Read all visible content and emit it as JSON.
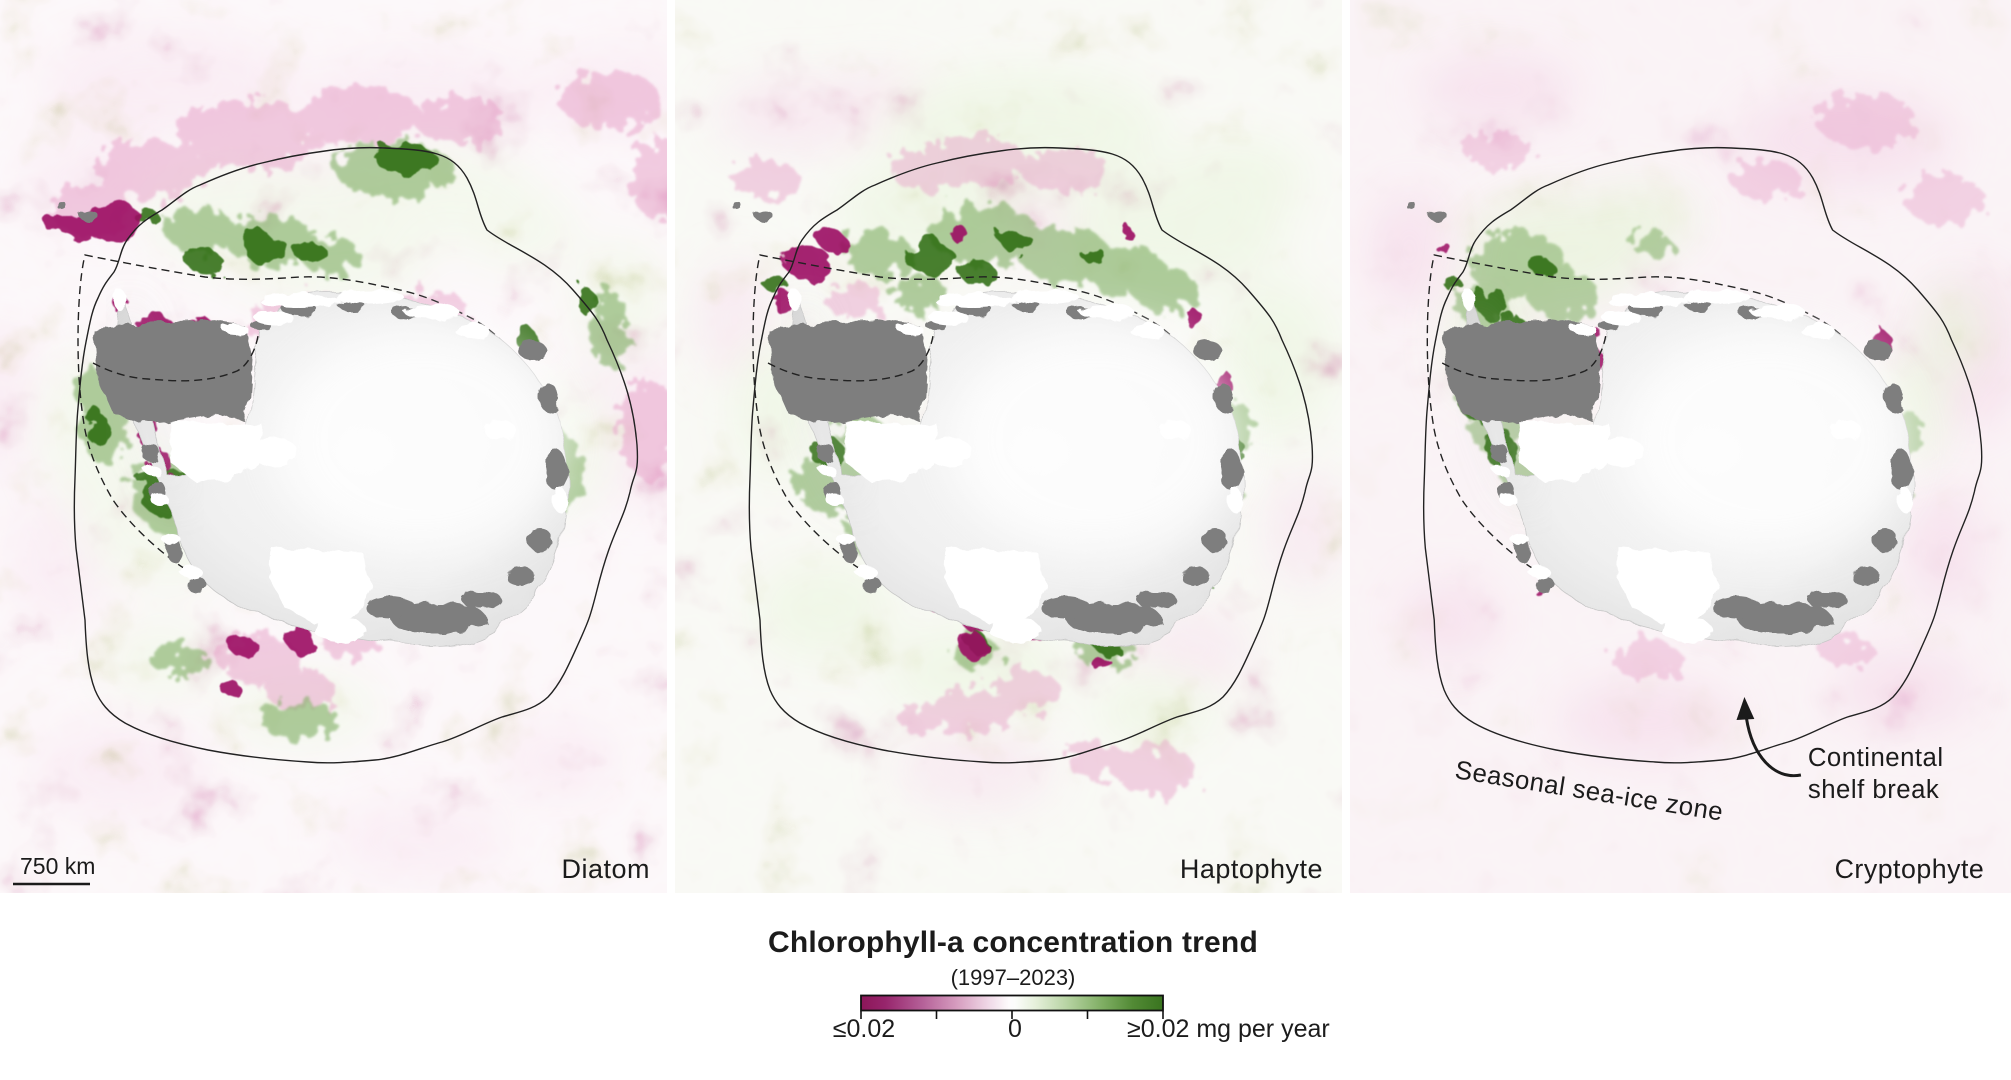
{
  "figure": {
    "type": "satellite map triptych",
    "region": "Antarctica / Southern Ocean"
  },
  "panels": [
    {
      "id": "diatom",
      "label": "Diatom"
    },
    {
      "id": "haptophyte",
      "label": "Haptophyte"
    },
    {
      "id": "cryptophyte",
      "label": "Cryptophyte"
    }
  ],
  "scale_bar": {
    "label": "750 km"
  },
  "annotations": {
    "sea_ice_zone": "Seasonal sea-ice zone",
    "shelf_break_line1": "Continental",
    "shelf_break_line2": "shelf break"
  },
  "legend": {
    "title": "Chlorophyll-a concentration trend",
    "subtitle": "(1997–2023)",
    "tick_left": "≤0.02",
    "tick_center": "0",
    "tick_right": "≥0.02 mg per year"
  },
  "colors": {
    "negative_end": "#8c1659",
    "positive_end": "#39741f",
    "magenta_patch": "#9c1063",
    "dark_green_patch": "#2c6a10",
    "mid_green_patch": "#7fae63",
    "pink_patch": "#e79fc7",
    "soft_pink": "#f2cde2",
    "soft_green": "#e2f0d0",
    "sea_ice_gray": "#7e7e7e",
    "continent_light": "#efefef",
    "background_pink": "#f9eff3",
    "background_green": "#f3f5ec",
    "contour_black": "#222222"
  },
  "chart_data": {
    "type": "heatmap",
    "title": "Chlorophyll-a concentration trend",
    "subtitle": "(1997–2023)",
    "units": "mg per year",
    "scale_labels": [
      "≤0.02",
      "0",
      "≥0.02 mg per year"
    ],
    "panels": [
      "Diatom",
      "Haptophyte",
      "Cryptophyte"
    ],
    "colormap_ends": [
      "#8c1659",
      "#ffffff",
      "#39741f"
    ],
    "map_features": [
      "Seasonal sea-ice zone",
      "Continental shelf break"
    ]
  }
}
